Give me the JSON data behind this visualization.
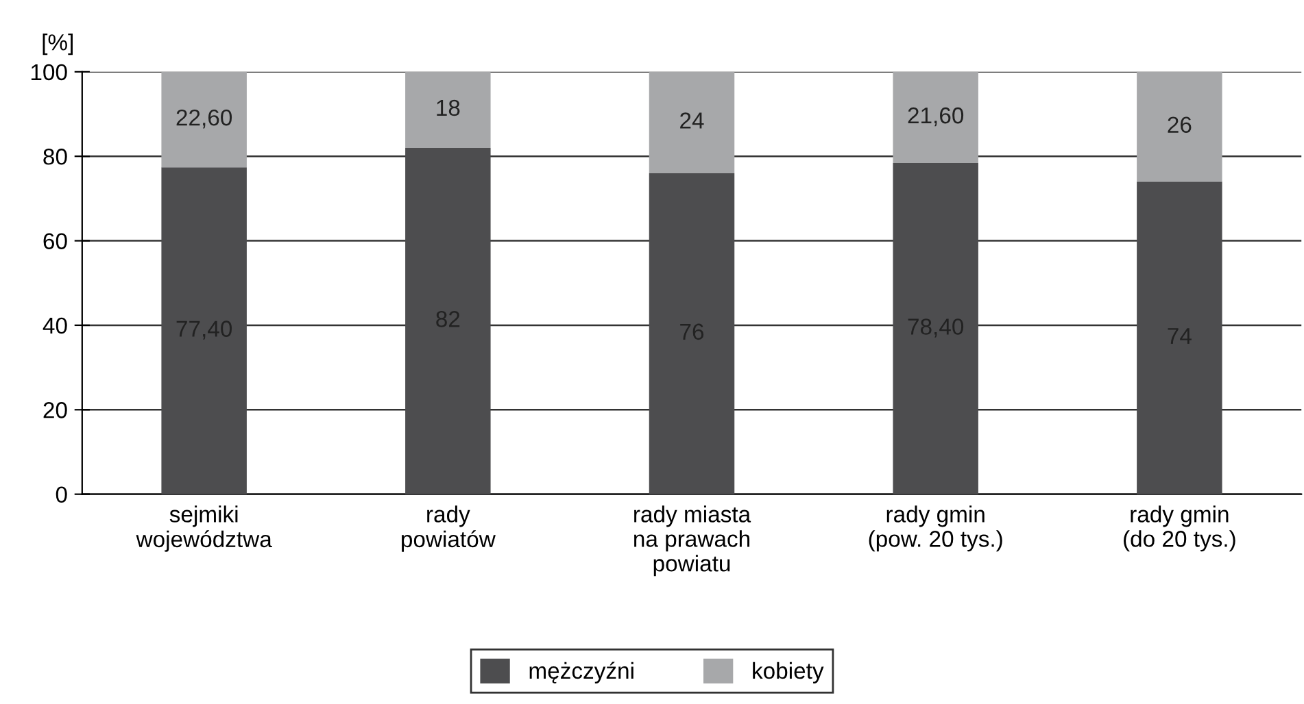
{
  "chart_data": {
    "type": "bar",
    "stacked": true,
    "ylabel": "[%]",
    "categories": [
      "sejmiki\nwojewództwa",
      "rady\npowiatów",
      "rady miasta\nna prawach\npowiatu",
      "rady gmin\n(pow. 20 tys.)",
      "rady gmin\n(do 20 tys.)"
    ],
    "series": [
      {
        "name": "mężczyźni",
        "color": "#4d4d4f",
        "values": [
          77.4,
          82,
          76,
          78.4,
          74
        ],
        "value_labels": [
          "77,40",
          "82",
          "76",
          "78,40",
          "74"
        ]
      },
      {
        "name": "kobiety",
        "color": "#a7a8aa",
        "values": [
          22.6,
          18,
          24,
          21.6,
          26
        ],
        "value_labels": [
          "22,60",
          "18",
          "24",
          "21,60",
          "26"
        ]
      }
    ],
    "ylim": [
      0,
      100
    ],
    "yticks": [
      0,
      20,
      40,
      60,
      80,
      100
    ],
    "grid": "y",
    "legend": "bottom"
  }
}
